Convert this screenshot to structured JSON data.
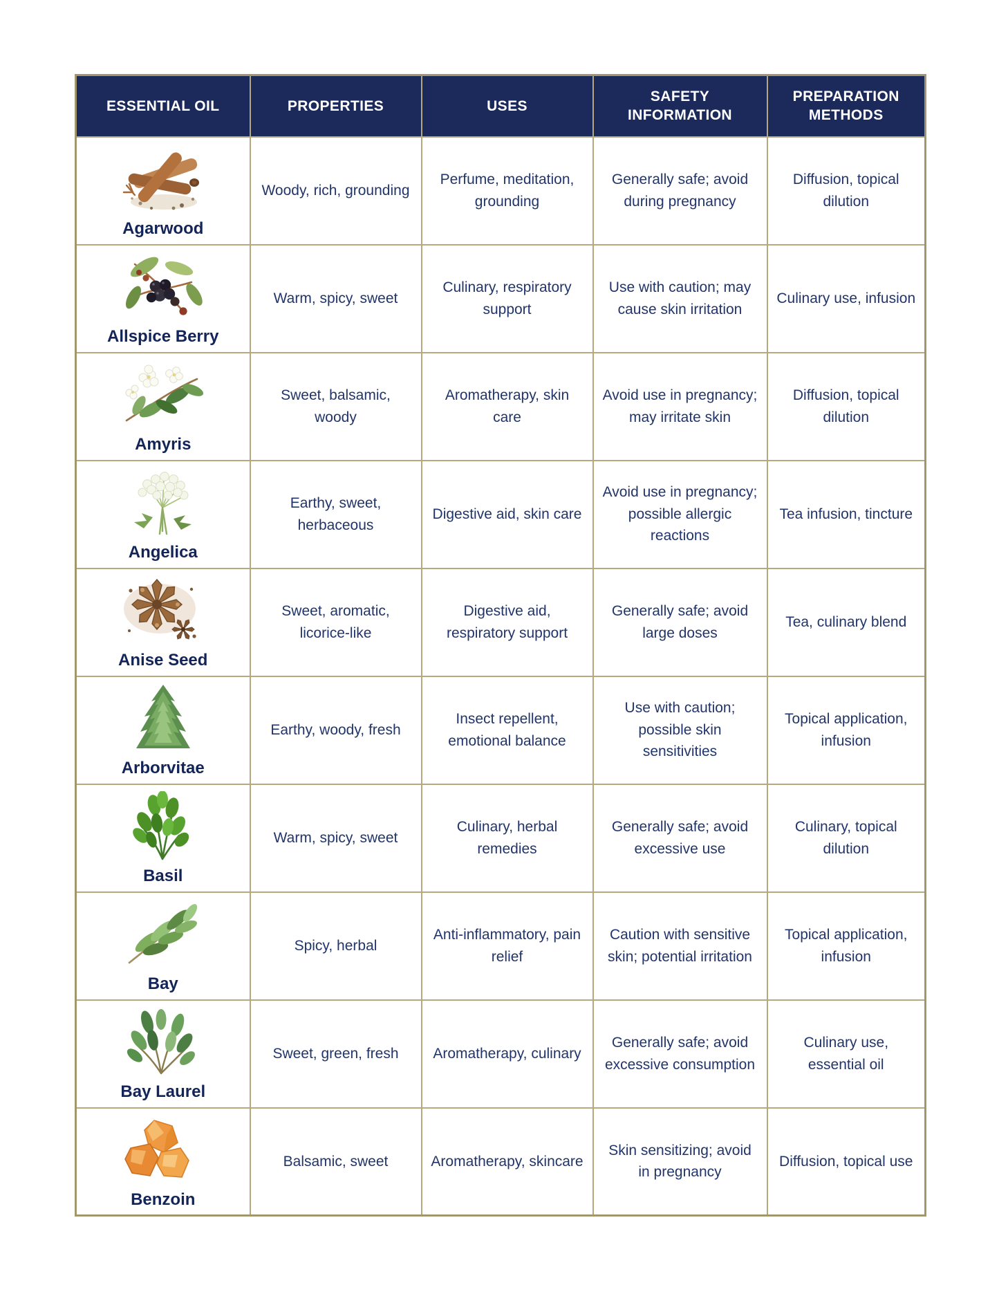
{
  "colors": {
    "header_bg": "#1b2a5b",
    "header_text": "#ffffff",
    "body_text": "#21356b",
    "name_text": "#132558",
    "border": "#b3a87e",
    "outer_border": "#a1966c",
    "page_bg": "#ffffff"
  },
  "table": {
    "columns": [
      "ESSENTIAL OIL",
      "PROPERTIES",
      "USES",
      "SAFETY INFORMATION",
      "PREPARATION METHODS"
    ],
    "rows": [
      {
        "name": "Agarwood",
        "icon": "agarwood-illustration",
        "properties": "Woody, rich, grounding",
        "uses": "Perfume, meditation, grounding",
        "safety": "Generally safe; avoid during pregnancy",
        "preparation": "Diffusion, topical dilution"
      },
      {
        "name": "Allspice Berry",
        "icon": "allspice-berry-illustration",
        "properties": "Warm, spicy, sweet",
        "uses": "Culinary, respiratory support",
        "safety": "Use with caution; may cause skin irritation",
        "preparation": "Culinary use, infusion"
      },
      {
        "name": "Amyris",
        "icon": "amyris-illustration",
        "properties": "Sweet, balsamic, woody",
        "uses": "Aromatherapy, skin care",
        "safety": "Avoid use in pregnancy; may irritate skin",
        "preparation": "Diffusion, topical dilution"
      },
      {
        "name": "Angelica",
        "icon": "angelica-illustration",
        "properties": "Earthy, sweet, herbaceous",
        "uses": "Digestive aid, skin care",
        "safety": "Avoid use in pregnancy; possible allergic reactions",
        "preparation": "Tea infusion, tincture"
      },
      {
        "name": "Anise Seed",
        "icon": "anise-seed-illustration",
        "properties": "Sweet, aromatic, licorice-like",
        "uses": "Digestive aid, respiratory support",
        "safety": "Generally safe; avoid large doses",
        "preparation": "Tea, culinary blend"
      },
      {
        "name": "Arborvitae",
        "icon": "arborvitae-illustration",
        "properties": "Earthy, woody, fresh",
        "uses": "Insect repellent, emotional balance",
        "safety": "Use with caution; possible skin sensitivities",
        "preparation": "Topical application, infusion"
      },
      {
        "name": "Basil",
        "icon": "basil-illustration",
        "properties": "Warm, spicy, sweet",
        "uses": "Culinary, herbal remedies",
        "safety": "Generally safe; avoid excessive use",
        "preparation": "Culinary, topical dilution"
      },
      {
        "name": "Bay",
        "icon": "bay-illustration",
        "properties": "Spicy, herbal",
        "uses": "Anti-inflammatory, pain relief",
        "safety": "Caution with sensitive skin; potential irritation",
        "preparation": "Topical application, infusion"
      },
      {
        "name": "Bay Laurel",
        "icon": "bay-laurel-illustration",
        "properties": "Sweet, green, fresh",
        "uses": "Aromatherapy, culinary",
        "safety": "Generally safe; avoid excessive consumption",
        "preparation": "Culinary use, essential oil"
      },
      {
        "name": "Benzoin",
        "icon": "benzoin-illustration",
        "properties": "Balsamic, sweet",
        "uses": "Aromatherapy, skincare",
        "safety": "Skin sensitizing; avoid in pregnancy",
        "preparation": "Diffusion, topical use"
      }
    ]
  }
}
